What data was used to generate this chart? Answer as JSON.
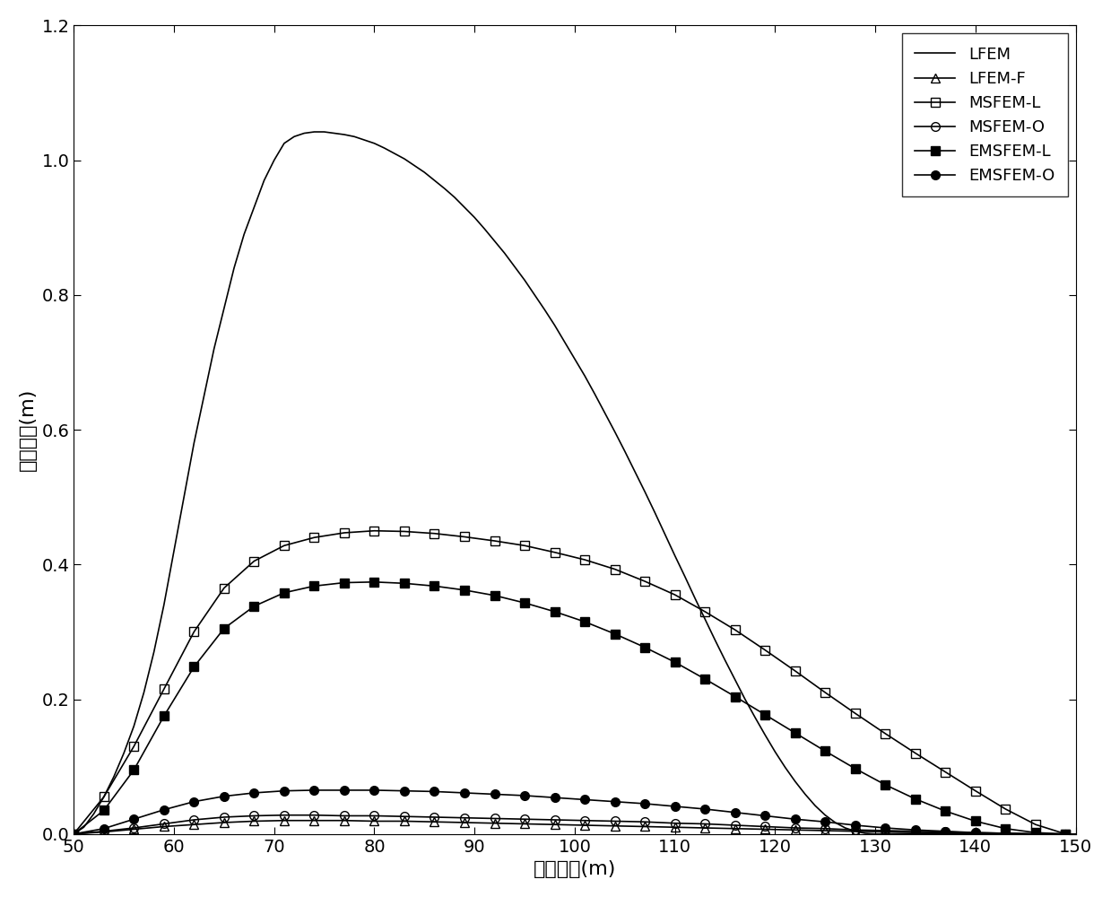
{
  "xlim": [
    50,
    150
  ],
  "ylim": [
    0,
    1.2
  ],
  "xlabel": "水平坐标(m)",
  "ylabel": "绝对误差(m)",
  "xticks": [
    50,
    60,
    70,
    80,
    90,
    100,
    110,
    120,
    130,
    140,
    150
  ],
  "yticks": [
    0,
    0.2,
    0.4,
    0.6,
    0.8,
    1.0,
    1.2
  ],
  "LFEM_x": [
    50,
    51,
    52,
    53,
    54,
    55,
    56,
    57,
    58,
    59,
    60,
    61,
    62,
    63,
    64,
    65,
    66,
    67,
    68,
    69,
    70,
    71,
    72,
    73,
    74,
    75,
    76,
    77,
    78,
    79,
    80,
    81,
    82,
    83,
    84,
    85,
    86,
    87,
    88,
    89,
    90,
    91,
    92,
    93,
    94,
    95,
    96,
    97,
    98,
    99,
    100,
    101,
    102,
    103,
    104,
    105,
    106,
    107,
    108,
    109,
    110,
    111,
    112,
    113,
    114,
    115,
    116,
    117,
    118,
    119,
    120,
    121,
    122,
    123,
    124,
    125,
    126,
    127,
    128,
    129,
    130,
    131,
    132,
    133,
    134,
    135,
    136,
    137,
    138,
    139,
    140,
    141,
    142,
    143,
    144,
    145,
    146,
    147,
    148,
    149,
    150
  ],
  "LFEM_y": [
    0.0,
    0.01,
    0.03,
    0.055,
    0.085,
    0.12,
    0.16,
    0.21,
    0.27,
    0.34,
    0.42,
    0.5,
    0.58,
    0.65,
    0.72,
    0.78,
    0.84,
    0.89,
    0.93,
    0.97,
    1.0,
    1.025,
    1.035,
    1.04,
    1.042,
    1.042,
    1.04,
    1.038,
    1.035,
    1.03,
    1.025,
    1.018,
    1.01,
    1.002,
    0.992,
    0.982,
    0.97,
    0.958,
    0.945,
    0.93,
    0.915,
    0.898,
    0.88,
    0.862,
    0.842,
    0.822,
    0.8,
    0.778,
    0.755,
    0.73,
    0.705,
    0.68,
    0.653,
    0.625,
    0.597,
    0.568,
    0.538,
    0.508,
    0.477,
    0.445,
    0.413,
    0.382,
    0.35,
    0.319,
    0.288,
    0.258,
    0.229,
    0.2,
    0.173,
    0.147,
    0.122,
    0.099,
    0.078,
    0.059,
    0.042,
    0.028,
    0.017,
    0.009,
    0.004,
    0.001,
    0.0,
    0.0,
    0.0,
    0.0,
    0.0,
    0.0,
    0.0,
    0.0,
    0.0,
    0.0,
    0.0,
    0.0,
    0.0,
    0.0,
    0.0,
    0.0,
    0.0,
    0.0,
    0.0,
    0.0,
    0.0
  ],
  "LFEM_F_x": [
    50,
    53,
    56,
    59,
    62,
    65,
    68,
    71,
    74,
    77,
    80,
    83,
    86,
    89,
    92,
    95,
    98,
    101,
    104,
    107,
    110,
    113,
    116,
    119,
    122,
    125,
    128,
    131,
    134,
    137,
    140,
    143,
    146,
    149
  ],
  "LFEM_F_y": [
    0.0,
    0.003,
    0.007,
    0.011,
    0.014,
    0.017,
    0.019,
    0.02,
    0.02,
    0.02,
    0.019,
    0.019,
    0.018,
    0.017,
    0.016,
    0.015,
    0.014,
    0.013,
    0.012,
    0.011,
    0.01,
    0.009,
    0.008,
    0.007,
    0.006,
    0.005,
    0.004,
    0.003,
    0.002,
    0.002,
    0.001,
    0.001,
    0.0,
    0.0
  ],
  "MSFEM_L_x": [
    50,
    53,
    56,
    59,
    62,
    65,
    68,
    71,
    74,
    77,
    80,
    83,
    86,
    89,
    92,
    95,
    98,
    101,
    104,
    107,
    110,
    113,
    116,
    119,
    122,
    125,
    128,
    131,
    134,
    137,
    140,
    143,
    146,
    149
  ],
  "MSFEM_L_y": [
    0.0,
    0.055,
    0.13,
    0.215,
    0.3,
    0.365,
    0.405,
    0.428,
    0.44,
    0.447,
    0.45,
    0.449,
    0.446,
    0.441,
    0.435,
    0.428,
    0.418,
    0.407,
    0.393,
    0.375,
    0.355,
    0.33,
    0.303,
    0.273,
    0.242,
    0.21,
    0.179,
    0.149,
    0.12,
    0.092,
    0.064,
    0.037,
    0.014,
    0.0
  ],
  "MSFEM_O_x": [
    50,
    53,
    56,
    59,
    62,
    65,
    68,
    71,
    74,
    77,
    80,
    83,
    86,
    89,
    92,
    95,
    98,
    101,
    104,
    107,
    110,
    113,
    116,
    119,
    122,
    125,
    128,
    131,
    134,
    137,
    140,
    143,
    146,
    149
  ],
  "MSFEM_O_y": [
    0.0,
    0.004,
    0.009,
    0.015,
    0.021,
    0.025,
    0.027,
    0.028,
    0.028,
    0.027,
    0.027,
    0.026,
    0.025,
    0.024,
    0.023,
    0.022,
    0.021,
    0.02,
    0.019,
    0.018,
    0.016,
    0.015,
    0.013,
    0.011,
    0.009,
    0.008,
    0.006,
    0.005,
    0.004,
    0.003,
    0.002,
    0.001,
    0.0,
    0.0
  ],
  "EMSFEM_L_x": [
    50,
    53,
    56,
    59,
    62,
    65,
    68,
    71,
    74,
    77,
    80,
    83,
    86,
    89,
    92,
    95,
    98,
    101,
    104,
    107,
    110,
    113,
    116,
    119,
    122,
    125,
    128,
    131,
    134,
    137,
    140,
    143,
    146,
    149
  ],
  "EMSFEM_L_y": [
    0.0,
    0.035,
    0.095,
    0.175,
    0.248,
    0.305,
    0.338,
    0.358,
    0.368,
    0.373,
    0.374,
    0.372,
    0.368,
    0.362,
    0.354,
    0.343,
    0.33,
    0.315,
    0.297,
    0.277,
    0.255,
    0.23,
    0.204,
    0.177,
    0.15,
    0.123,
    0.097,
    0.073,
    0.052,
    0.034,
    0.019,
    0.008,
    0.002,
    0.0
  ],
  "EMSFEM_O_x": [
    50,
    53,
    56,
    59,
    62,
    65,
    68,
    71,
    74,
    77,
    80,
    83,
    86,
    89,
    92,
    95,
    98,
    101,
    104,
    107,
    110,
    113,
    116,
    119,
    122,
    125,
    128,
    131,
    134,
    137,
    140,
    143,
    146,
    149
  ],
  "EMSFEM_O_y": [
    0.0,
    0.008,
    0.022,
    0.036,
    0.048,
    0.056,
    0.061,
    0.064,
    0.065,
    0.065,
    0.065,
    0.064,
    0.063,
    0.061,
    0.059,
    0.057,
    0.054,
    0.051,
    0.048,
    0.045,
    0.041,
    0.037,
    0.032,
    0.027,
    0.022,
    0.018,
    0.013,
    0.009,
    0.006,
    0.004,
    0.002,
    0.001,
    0.0,
    0.0
  ],
  "legend_loc": "upper right",
  "figsize": [
    12.39,
    10.0
  ],
  "dpi": 100,
  "linewidth": 1.2,
  "markersize": 7,
  "ticklabelsize": 14,
  "axislabelsize": 16
}
